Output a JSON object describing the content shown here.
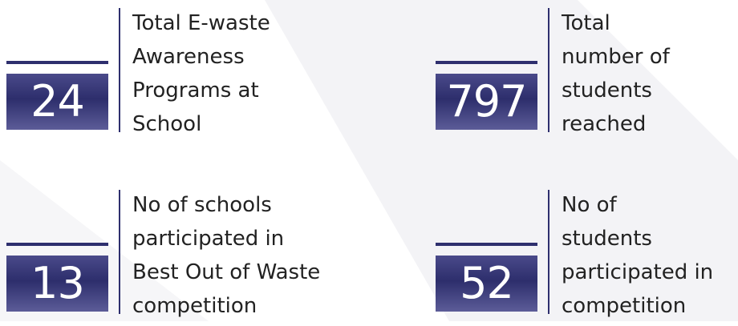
{
  "items": [
    {
      "number": "24",
      "label_lines": [
        "Total E-waste",
        "Awareness",
        "Programs at",
        "School"
      ]
    },
    {
      "number": "797",
      "label_lines": [
        "Total",
        "number of",
        "students",
        "reached"
      ]
    },
    {
      "number": "13",
      "label_lines": [
        "No of schools",
        "participated in",
        "Best Out of Waste",
        "competition"
      ]
    },
    {
      "number": "52",
      "label_lines": [
        "No of",
        "students",
        "participated in",
        "competition"
      ]
    }
  ]
}
